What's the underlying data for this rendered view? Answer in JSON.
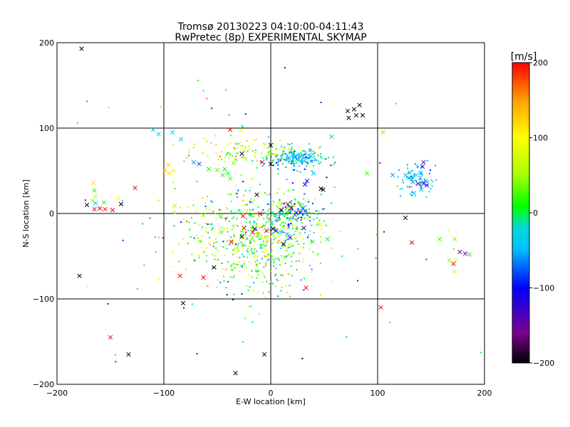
{
  "chart_data": {
    "type": "scatter",
    "title": "Tromsø 20130223 04:10:00-04:11:43",
    "subtitle": "RwPretec (8p) EXPERIMENTAL SKYMAP",
    "xlabel": "E-W location [km]",
    "ylabel": "N-S location [km]",
    "xlim": [
      -200,
      200
    ],
    "ylim": [
      -200,
      200
    ],
    "xticks": [
      -200,
      -100,
      0,
      100,
      200
    ],
    "yticks": [
      -200,
      -100,
      0,
      100,
      200
    ],
    "grid": true,
    "colorbar": {
      "label": "[m/s]",
      "min": -200,
      "max": 200,
      "ticks": [
        -200,
        -100,
        0,
        100,
        200
      ],
      "colormap": [
        "#000000",
        "#7a0090",
        "#0000ff",
        "#00bfff",
        "#00d9d9",
        "#00ff00",
        "#aaff00",
        "#ffff00",
        "#ffa500",
        "#ff0000"
      ]
    },
    "markers": {
      "cross": [
        {
          "x": -177,
          "y": 193,
          "v": -200
        },
        {
          "x": -179,
          "y": -73,
          "v": -200
        },
        {
          "x": -150,
          "y": -145,
          "v": 200
        },
        {
          "x": -133,
          "y": -165,
          "v": -200
        },
        {
          "x": -33,
          "y": -187,
          "v": -200
        },
        {
          "x": -6,
          "y": -165,
          "v": -200
        },
        {
          "x": -82,
          "y": -105,
          "v": -200
        },
        {
          "x": 103,
          "y": -110,
          "v": 200
        },
        {
          "x": -85,
          "y": -73,
          "v": 200
        },
        {
          "x": -63,
          "y": -75,
          "v": 200
        },
        {
          "x": -53,
          "y": -63,
          "v": -200
        },
        {
          "x": 33,
          "y": -87,
          "v": 200
        },
        {
          "x": 72,
          "y": 120,
          "v": -200
        },
        {
          "x": 78,
          "y": 122,
          "v": -200
        },
        {
          "x": 83,
          "y": 127,
          "v": -200
        },
        {
          "x": 86,
          "y": 115,
          "v": -200
        },
        {
          "x": 73,
          "y": 112,
          "v": -200
        },
        {
          "x": 80,
          "y": 115,
          "v": -200
        },
        {
          "x": 0,
          "y": 80,
          "v": -200
        },
        {
          "x": -27,
          "y": 70,
          "v": -200
        },
        {
          "x": 0,
          "y": 58,
          "v": -200
        },
        {
          "x": -8,
          "y": 60,
          "v": 200
        },
        {
          "x": -38,
          "y": 98,
          "v": 200
        },
        {
          "x": -28,
          "y": 97,
          "v": 100
        },
        {
          "x": -127,
          "y": 30,
          "v": 200
        },
        {
          "x": -143,
          "y": 18,
          "v": 100
        },
        {
          "x": -140,
          "y": 11,
          "v": -200
        },
        {
          "x": -172,
          "y": 10,
          "v": -200
        },
        {
          "x": -165,
          "y": 5,
          "v": 200
        },
        {
          "x": -155,
          "y": 5,
          "v": 200
        },
        {
          "x": -148,
          "y": 4,
          "v": 200
        },
        {
          "x": -160,
          "y": 6,
          "v": 200
        },
        {
          "x": -167,
          "y": 15,
          "v": 50
        },
        {
          "x": -164,
          "y": 20,
          "v": 60
        },
        {
          "x": -165,
          "y": 27,
          "v": 20
        },
        {
          "x": -166,
          "y": 36,
          "v": 110
        },
        {
          "x": -164,
          "y": 12,
          "v": -40
        },
        {
          "x": -156,
          "y": 13,
          "v": 20
        },
        {
          "x": -96,
          "y": 57,
          "v": 120
        },
        {
          "x": -99,
          "y": 50,
          "v": 130
        },
        {
          "x": -91,
          "y": 50,
          "v": 110
        },
        {
          "x": -95,
          "y": 47,
          "v": 120
        },
        {
          "x": -84,
          "y": 87,
          "v": -30
        },
        {
          "x": -110,
          "y": 98,
          "v": -40
        },
        {
          "x": -105,
          "y": 93,
          "v": -30
        },
        {
          "x": -92,
          "y": 95,
          "v": -40
        },
        {
          "x": -72,
          "y": 60,
          "v": -60
        },
        {
          "x": -67,
          "y": 58,
          "v": -80
        },
        {
          "x": -50,
          "y": 51,
          "v": 30
        },
        {
          "x": -45,
          "y": 45,
          "v": 20
        },
        {
          "x": -40,
          "y": 47,
          "v": 10
        },
        {
          "x": -43,
          "y": 52,
          "v": 0
        },
        {
          "x": -58,
          "y": 52,
          "v": 10
        },
        {
          "x": -35,
          "y": 59,
          "v": 40
        },
        {
          "x": -38,
          "y": 41,
          "v": 30
        },
        {
          "x": -90,
          "y": 9,
          "v": 60
        },
        {
          "x": -63,
          "y": -2,
          "v": 40
        },
        {
          "x": -47,
          "y": -3,
          "v": 30
        },
        {
          "x": -13,
          "y": 22,
          "v": -200
        },
        {
          "x": 10,
          "y": 4,
          "v": -200
        },
        {
          "x": 16,
          "y": 11,
          "v": 200
        },
        {
          "x": 19,
          "y": 6,
          "v": 200
        },
        {
          "x": 24,
          "y": 1,
          "v": -100
        },
        {
          "x": 28,
          "y": 1,
          "v": -80
        },
        {
          "x": 30,
          "y": 6,
          "v": -90
        },
        {
          "x": 32,
          "y": 34,
          "v": -100
        },
        {
          "x": 34,
          "y": 38,
          "v": -100
        },
        {
          "x": 47,
          "y": 29,
          "v": -200
        },
        {
          "x": 40,
          "y": 47,
          "v": -40
        },
        {
          "x": 16,
          "y": 63,
          "v": -30
        },
        {
          "x": 22,
          "y": 67,
          "v": -40
        },
        {
          "x": 29,
          "y": 67,
          "v": -40
        },
        {
          "x": 38,
          "y": 67,
          "v": -40
        },
        {
          "x": 57,
          "y": 90,
          "v": -40
        },
        {
          "x": 90,
          "y": 47,
          "v": 20
        },
        {
          "x": 105,
          "y": 95,
          "v": 40
        },
        {
          "x": -25,
          "y": -17,
          "v": 200
        },
        {
          "x": -15,
          "y": -18,
          "v": -200
        },
        {
          "x": -12,
          "y": -25,
          "v": 30
        },
        {
          "x": -6,
          "y": -14,
          "v": 30
        },
        {
          "x": -4,
          "y": -20,
          "v": 200
        },
        {
          "x": 1,
          "y": -11,
          "v": -30
        },
        {
          "x": 2,
          "y": -18,
          "v": -200
        },
        {
          "x": 5,
          "y": -20,
          "v": -100
        },
        {
          "x": 9,
          "y": -22,
          "v": -30
        },
        {
          "x": 12,
          "y": -36,
          "v": -200
        },
        {
          "x": 15,
          "y": -24,
          "v": -40
        },
        {
          "x": 18,
          "y": -28,
          "v": -100
        },
        {
          "x": -17,
          "y": -22,
          "v": 200
        },
        {
          "x": -27,
          "y": -27,
          "v": -200
        },
        {
          "x": -37,
          "y": -33,
          "v": 200
        },
        {
          "x": -46,
          "y": -22,
          "v": 30
        },
        {
          "x": -10,
          "y": 0,
          "v": 200
        },
        {
          "x": -26,
          "y": -3,
          "v": 200
        },
        {
          "x": 31,
          "y": -17,
          "v": -100
        },
        {
          "x": 39,
          "y": -33,
          "v": 0
        },
        {
          "x": 46,
          "y": -13,
          "v": 80
        },
        {
          "x": 53,
          "y": -30,
          "v": 0
        },
        {
          "x": 49,
          "y": 28,
          "v": -200
        },
        {
          "x": 130,
          "y": 48,
          "v": -40
        },
        {
          "x": 136,
          "y": 45,
          "v": -40
        },
        {
          "x": 140,
          "y": 42,
          "v": -40
        },
        {
          "x": 145,
          "y": 38,
          "v": -60
        },
        {
          "x": 133,
          "y": 37,
          "v": -60
        },
        {
          "x": 138,
          "y": 35,
          "v": -150
        },
        {
          "x": 143,
          "y": 35,
          "v": -130
        },
        {
          "x": 146,
          "y": 33,
          "v": -110
        },
        {
          "x": 141,
          "y": 28,
          "v": -50
        },
        {
          "x": 134,
          "y": 24,
          "v": -40
        },
        {
          "x": 129,
          "y": 42,
          "v": -40
        },
        {
          "x": 126,
          "y": 45,
          "v": -40
        },
        {
          "x": 114,
          "y": 45,
          "v": -60
        },
        {
          "x": 143,
          "y": 60,
          "v": -150
        },
        {
          "x": 142,
          "y": 55,
          "v": -110
        },
        {
          "x": 140,
          "y": 48,
          "v": -50
        },
        {
          "x": 126,
          "y": -5,
          "v": -200
        },
        {
          "x": 132,
          "y": -34,
          "v": 200
        },
        {
          "x": 158,
          "y": -30,
          "v": 20
        },
        {
          "x": 172,
          "y": -30,
          "v": 40
        },
        {
          "x": 177,
          "y": -45,
          "v": -150
        },
        {
          "x": 182,
          "y": -47,
          "v": -150
        },
        {
          "x": 186,
          "y": -48,
          "v": 20
        },
        {
          "x": 167,
          "y": -55,
          "v": 40
        },
        {
          "x": 171,
          "y": -59,
          "v": 200
        },
        {
          "x": 173,
          "y": -55,
          "v": 80
        },
        {
          "x": 172,
          "y": -68,
          "v": 70
        }
      ],
      "dots": {
        "clusters": [
          {
            "cx": -10,
            "cy": -30,
            "sx": 28,
            "sy": 30,
            "n": 560,
            "vmean": 30,
            "vsd": 55
          },
          {
            "cx": 20,
            "cy": 0,
            "sx": 14,
            "sy": 10,
            "n": 150,
            "vmean": -30,
            "vsd": 50
          },
          {
            "cx": 25,
            "cy": 64,
            "sx": 13,
            "sy": 6,
            "n": 200,
            "vmean": -40,
            "vsd": 30
          },
          {
            "cx": -25,
            "cy": 72,
            "sx": 22,
            "sy": 7,
            "n": 110,
            "vmean": 70,
            "vsd": 45
          },
          {
            "cx": 136,
            "cy": 40,
            "sx": 9,
            "sy": 8,
            "n": 70,
            "vmean": -50,
            "vsd": 25
          },
          {
            "cx": -60,
            "cy": -20,
            "sx": 30,
            "sy": 25,
            "n": 70,
            "vmean": 40,
            "vsd": 60
          },
          {
            "cx": 0,
            "cy": 0,
            "sx": 110,
            "sy": 100,
            "n": 90,
            "vmean": 0,
            "vsd": 100
          }
        ]
      }
    }
  }
}
